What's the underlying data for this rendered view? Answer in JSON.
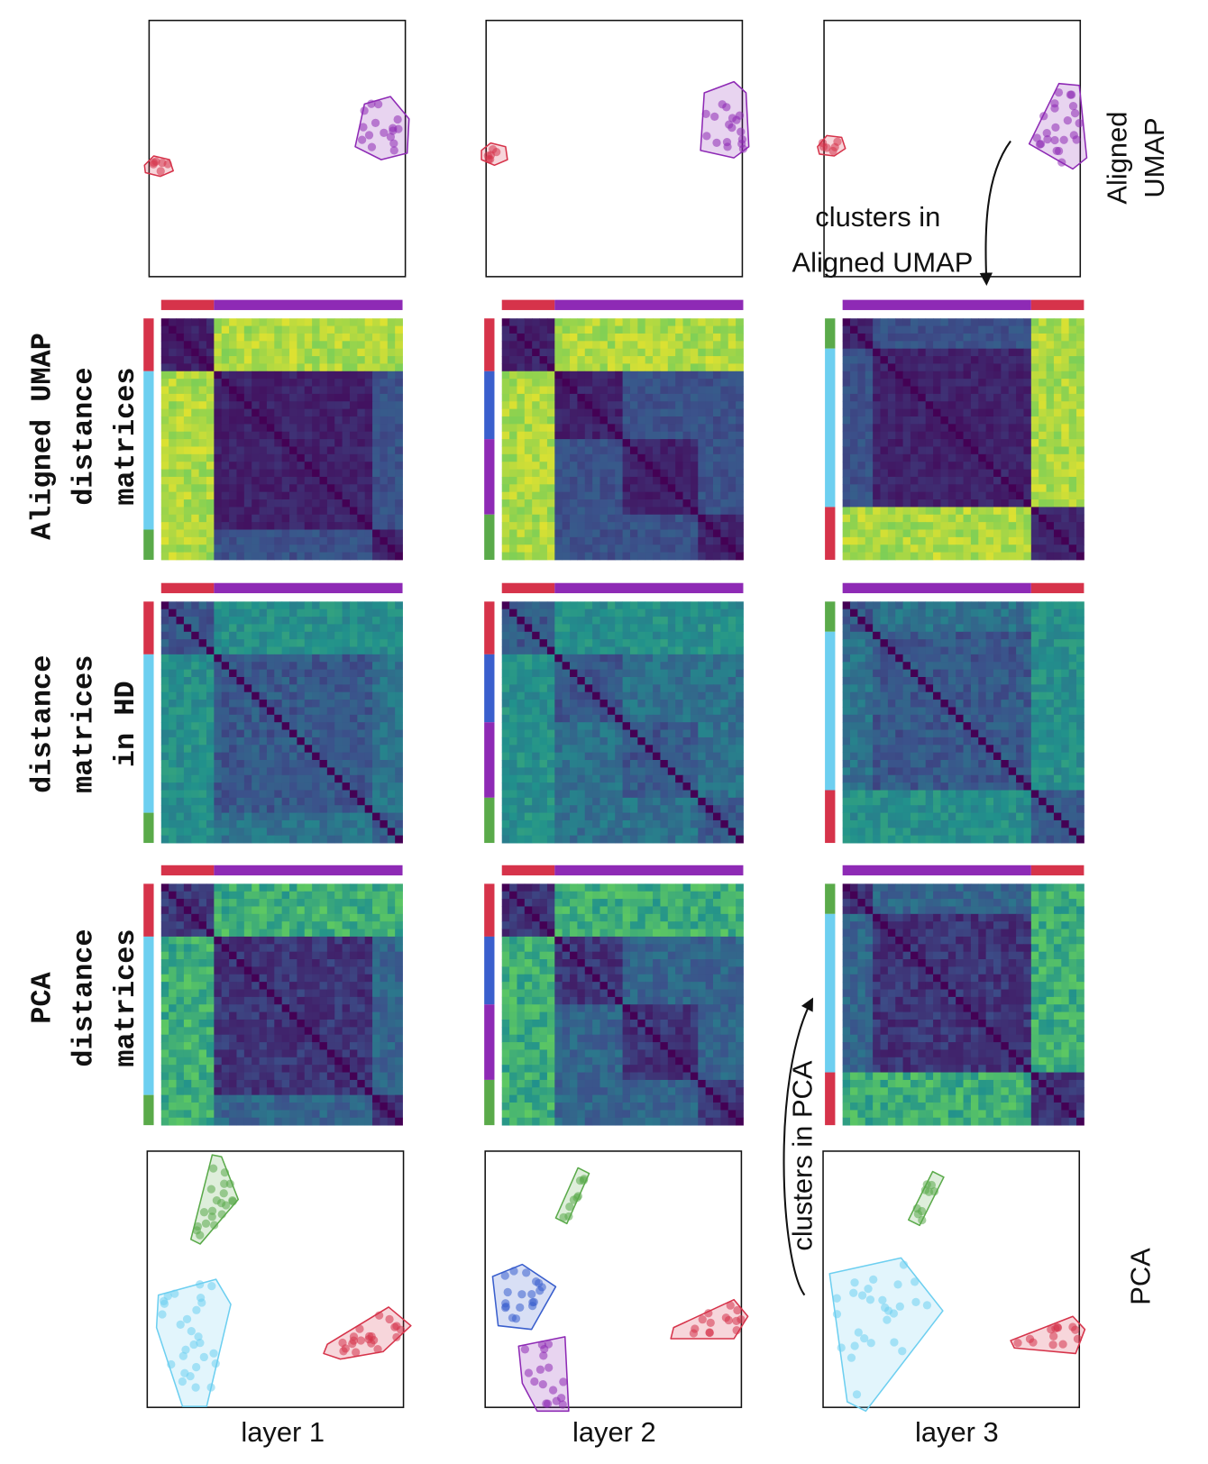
{
  "row_labels": [
    {
      "lines": [
        "Aligned UMAP",
        "distance",
        "matrices"
      ]
    },
    {
      "lines": [
        "distance",
        "matrices",
        "in HD"
      ]
    },
    {
      "lines": [
        "PCA",
        "distance",
        "matrices"
      ]
    }
  ],
  "side_labels": {
    "top": [
      "Aligned",
      "UMAP"
    ],
    "bottom": "PCA"
  },
  "annotations": {
    "umap": [
      "clusters in",
      "Aligned UMAP"
    ],
    "pca": "clusters in PCA"
  },
  "columns": [
    "layer 1",
    "layer 2",
    "layer 3"
  ]
}
